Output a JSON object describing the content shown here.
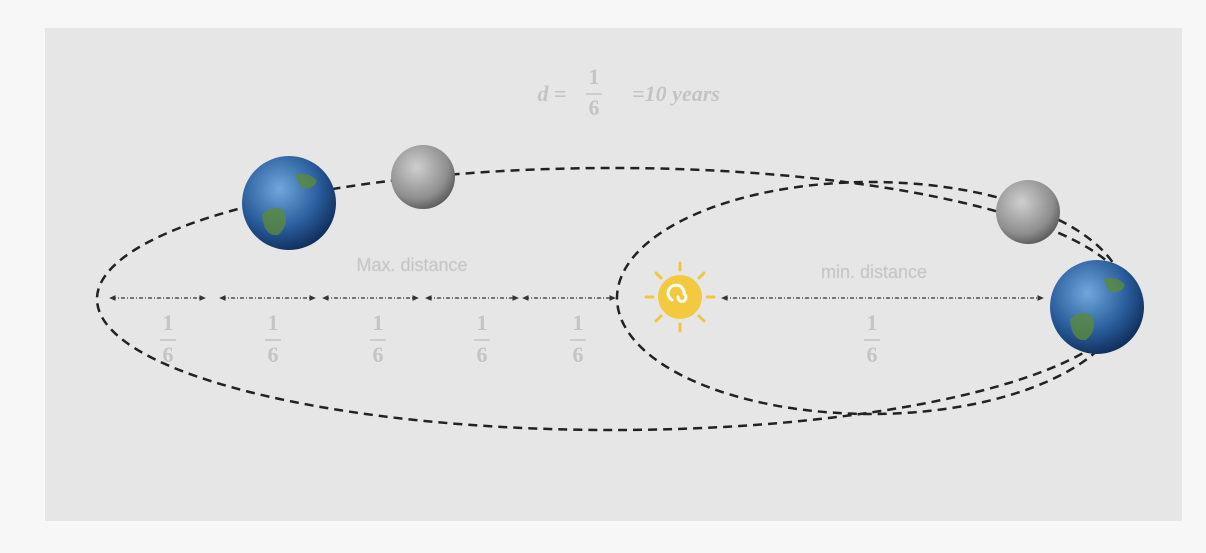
{
  "formula": {
    "lhs": "d =",
    "numerator": "1",
    "denominator": "6",
    "rhs": "=10 years"
  },
  "labels": {
    "max": "Max. distance",
    "min": "min. distance"
  },
  "segments": [
    {
      "numerator": "1",
      "denominator": "6"
    },
    {
      "numerator": "1",
      "denominator": "6"
    },
    {
      "numerator": "1",
      "denominator": "6"
    },
    {
      "numerator": "1",
      "denominator": "6"
    },
    {
      "numerator": "1",
      "denominator": "6"
    },
    {
      "numerator": "1",
      "denominator": "6"
    }
  ]
}
